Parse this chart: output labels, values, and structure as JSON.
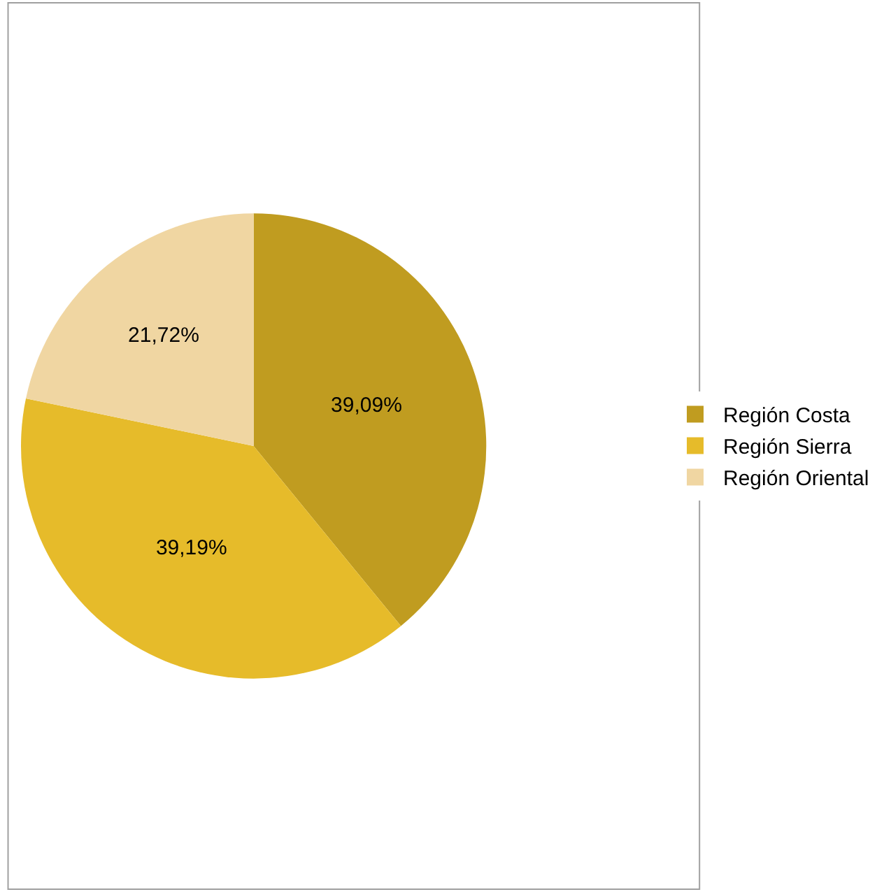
{
  "chart_data": {
    "type": "pie",
    "categories": [
      "Región Costa",
      "Región Sierra",
      "Región Oriental"
    ],
    "values": [
      39.09,
      39.19,
      21.72
    ],
    "colors": [
      "#c09c20",
      "#e6bb2a",
      "#f0d6a2"
    ],
    "value_labels": [
      "39,09%",
      "39,19%",
      "21,72%"
    ],
    "legend": "right"
  }
}
